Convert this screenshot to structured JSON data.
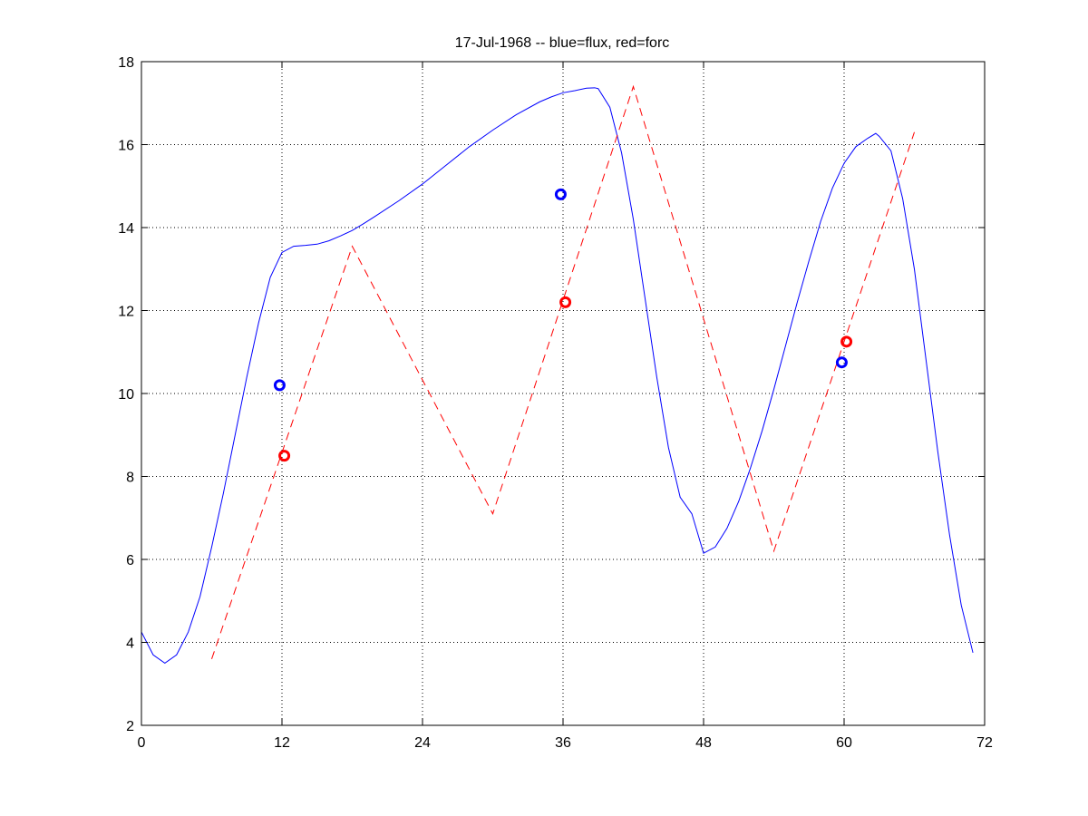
{
  "chart_data": {
    "type": "line",
    "title": "17-Jul-1968 -- blue=flux, red=forc",
    "xlabel": "",
    "ylabel": "",
    "xlim": [
      0,
      72
    ],
    "ylim": [
      2,
      18
    ],
    "grid": true,
    "xticks": [
      0,
      12,
      24,
      36,
      48,
      60,
      72
    ],
    "yticks": [
      2,
      4,
      6,
      8,
      10,
      12,
      14,
      16,
      18
    ],
    "series": [
      {
        "color": "#0000ff",
        "style": "solid",
        "points": [
          [
            0,
            4.25
          ],
          [
            1,
            3.7
          ],
          [
            2,
            3.5
          ],
          [
            3,
            3.7
          ],
          [
            4,
            4.25
          ],
          [
            5,
            5.1
          ],
          [
            6,
            6.3
          ],
          [
            7,
            7.6
          ],
          [
            8,
            9.0
          ],
          [
            9,
            10.4
          ],
          [
            10,
            11.7
          ],
          [
            11,
            12.8
          ],
          [
            12,
            13.4
          ],
          [
            13,
            13.55
          ],
          [
            14,
            13.57
          ],
          [
            15,
            13.6
          ],
          [
            16,
            13.68
          ],
          [
            17,
            13.8
          ],
          [
            18,
            13.93
          ],
          [
            19,
            14.1
          ],
          [
            20,
            14.28
          ],
          [
            22,
            14.65
          ],
          [
            24,
            15.05
          ],
          [
            26,
            15.5
          ],
          [
            28,
            15.95
          ],
          [
            30,
            16.35
          ],
          [
            32,
            16.72
          ],
          [
            34,
            17.03
          ],
          [
            35,
            17.15
          ],
          [
            36,
            17.25
          ],
          [
            37,
            17.3
          ],
          [
            38,
            17.36
          ],
          [
            38.7,
            17.37
          ],
          [
            39,
            17.35
          ],
          [
            40,
            16.9
          ],
          [
            41,
            15.8
          ],
          [
            42,
            14.2
          ],
          [
            43,
            12.3
          ],
          [
            44,
            10.4
          ],
          [
            45,
            8.7
          ],
          [
            46,
            7.5
          ],
          [
            47,
            7.1
          ],
          [
            48,
            6.15
          ],
          [
            49,
            6.3
          ],
          [
            50,
            6.75
          ],
          [
            51,
            7.4
          ],
          [
            52,
            8.2
          ],
          [
            53,
            9.1
          ],
          [
            54,
            10.1
          ],
          [
            55,
            11.15
          ],
          [
            56,
            12.2
          ],
          [
            57,
            13.2
          ],
          [
            58,
            14.15
          ],
          [
            59,
            14.95
          ],
          [
            60,
            15.55
          ],
          [
            61,
            15.95
          ],
          [
            62,
            16.15
          ],
          [
            62.7,
            16.27
          ],
          [
            63,
            16.2
          ],
          [
            64,
            15.85
          ],
          [
            65,
            14.7
          ],
          [
            66,
            13.0
          ],
          [
            67,
            10.8
          ],
          [
            68,
            8.6
          ],
          [
            69,
            6.6
          ],
          [
            70,
            4.9
          ],
          [
            71,
            3.75
          ]
        ]
      },
      {
        "color": "#ff0000",
        "style": "dashed",
        "points": [
          [
            6,
            3.6
          ],
          [
            18,
            13.55
          ],
          [
            30,
            7.1
          ],
          [
            42,
            17.4
          ],
          [
            54,
            6.2
          ],
          [
            66,
            16.3
          ]
        ]
      }
    ],
    "markers": [
      {
        "x": 11.8,
        "y": 10.2,
        "color": "#0000ff"
      },
      {
        "x": 12.2,
        "y": 8.5,
        "color": "#ff0000"
      },
      {
        "x": 35.8,
        "y": 14.8,
        "color": "#0000ff"
      },
      {
        "x": 36.2,
        "y": 12.2,
        "color": "#ff0000"
      },
      {
        "x": 59.8,
        "y": 10.75,
        "color": "#0000ff"
      },
      {
        "x": 60.2,
        "y": 11.25,
        "color": "#ff0000"
      }
    ]
  }
}
